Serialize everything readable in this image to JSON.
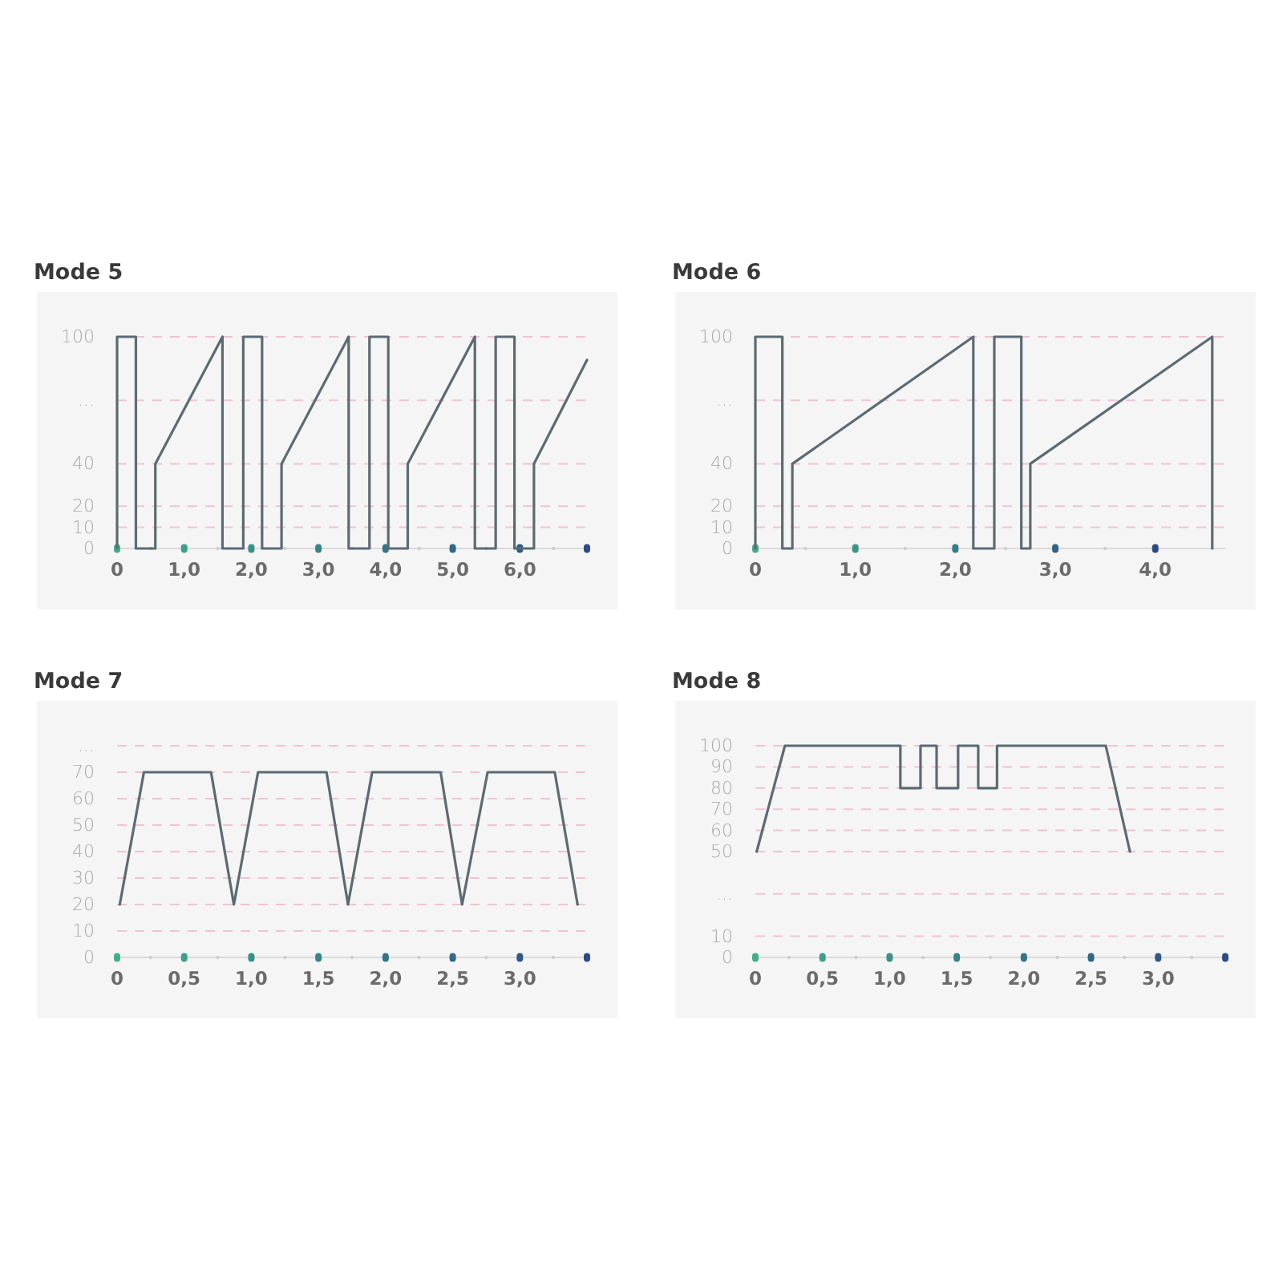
{
  "chart_data": [
    {
      "type": "line",
      "title": "Mode 5",
      "xlim": [
        0,
        7
      ],
      "xticks": [
        {
          "value": 0,
          "label": "0"
        },
        {
          "value": 1,
          "label": "1,0"
        },
        {
          "value": 2,
          "label": "2,0"
        },
        {
          "value": 3,
          "label": "3,0"
        },
        {
          "value": 4,
          "label": "4,0"
        },
        {
          "value": 5,
          "label": "5,0"
        },
        {
          "value": 6,
          "label": "6,0"
        },
        {
          "value": 7,
          "label": null
        }
      ],
      "ylim": [
        0,
        100
      ],
      "yticks": [
        0,
        10,
        20,
        40,
        {
          "value": 70,
          "label": "..."
        },
        100
      ],
      "grid": "y",
      "line_style": "solid",
      "series": [
        {
          "color": "#5b6b73",
          "x": [
            0,
            0,
            0.28,
            0.28,
            0.57,
            0.57,
            1.57,
            1.57,
            1.88,
            1.88,
            2.16,
            2.16,
            2.45,
            2.45,
            3.45,
            3.45,
            3.76,
            3.76,
            4.04,
            4.04,
            4.33,
            4.33,
            5.33,
            5.33,
            5.64,
            5.64,
            5.92,
            5.92,
            6.21,
            6.21,
            7.0
          ],
          "values": [
            0,
            100,
            100,
            0,
            0,
            40,
            100,
            0,
            0,
            100,
            100,
            0,
            0,
            40,
            100,
            0,
            0,
            100,
            100,
            0,
            0,
            40,
            100,
            0,
            0,
            100,
            100,
            0,
            0,
            40,
            89
          ]
        }
      ]
    },
    {
      "type": "line",
      "title": "Mode 6",
      "xlim": [
        0,
        4.7
      ],
      "xticks": [
        {
          "value": 0,
          "label": "0"
        },
        {
          "value": 1,
          "label": "1,0"
        },
        {
          "value": 2,
          "label": "2,0"
        },
        {
          "value": 3,
          "label": "3,0"
        },
        {
          "value": 4,
          "label": "4,0"
        }
      ],
      "ylim": [
        0,
        100
      ],
      "yticks": [
        0,
        10,
        20,
        40,
        {
          "value": 70,
          "label": "..."
        },
        100
      ],
      "grid": "y",
      "line_style": "solid",
      "series": [
        {
          "color": "#5b6b73",
          "x": [
            0,
            0,
            0.27,
            0.27,
            0.37,
            0.37,
            2.18,
            2.18,
            2.39,
            2.39,
            2.66,
            2.66,
            2.75,
            2.75,
            4.57,
            4.57
          ],
          "values": [
            0,
            100,
            100,
            0,
            0,
            40,
            100,
            0,
            0,
            100,
            100,
            0,
            0,
            40,
            100,
            0
          ]
        }
      ]
    },
    {
      "type": "line",
      "title": "Mode 7",
      "xlim": [
        0,
        3.5
      ],
      "xticks": [
        {
          "value": 0,
          "label": "0"
        },
        {
          "value": 0.5,
          "label": "0,5"
        },
        {
          "value": 1,
          "label": "1,0"
        },
        {
          "value": 1.5,
          "label": "1,5"
        },
        {
          "value": 2,
          "label": "2,0"
        },
        {
          "value": 2.5,
          "label": "2,5"
        },
        {
          "value": 3,
          "label": "3,0"
        },
        {
          "value": 3.5,
          "label": null
        }
      ],
      "ylim": [
        0,
        80
      ],
      "yticks": [
        0,
        10,
        20,
        30,
        40,
        50,
        60,
        70,
        {
          "value": 80,
          "label": "..."
        }
      ],
      "grid": "y",
      "line_style": "solid",
      "series": [
        {
          "color": "#5b6b73",
          "x": [
            0.02,
            0.2,
            0.7,
            0.87,
            1.05,
            1.56,
            1.72,
            1.9,
            2.41,
            2.57,
            2.76,
            3.26,
            3.43
          ],
          "values": [
            20,
            70,
            70,
            20,
            70,
            70,
            20,
            70,
            70,
            20,
            70,
            70,
            20
          ]
        }
      ]
    },
    {
      "type": "line",
      "title": "Mode 8",
      "xlim": [
        0,
        3.5
      ],
      "xticks": [
        {
          "value": 0,
          "label": "0"
        },
        {
          "value": 0.5,
          "label": "0,5"
        },
        {
          "value": 1,
          "label": "1,0"
        },
        {
          "value": 1.5,
          "label": "1,5"
        },
        {
          "value": 2,
          "label": "2,0"
        },
        {
          "value": 2.5,
          "label": "2,5"
        },
        {
          "value": 3,
          "label": "3,0"
        },
        {
          "value": 3.5,
          "label": null
        }
      ],
      "ylim": [
        0,
        100
      ],
      "yticks": [
        0,
        10,
        {
          "value": 30,
          "label": "..."
        },
        50,
        60,
        70,
        80,
        90,
        100
      ],
      "grid": "y",
      "line_style": "solid",
      "series": [
        {
          "color": "#5b6b73",
          "x": [
            0.01,
            0.22,
            1.08,
            1.08,
            1.23,
            1.23,
            1.35,
            1.35,
            1.51,
            1.51,
            1.66,
            1.66,
            1.8,
            1.8,
            2.61,
            2.79
          ],
          "values": [
            50,
            100,
            100,
            80,
            80,
            100,
            100,
            80,
            80,
            100,
            100,
            80,
            80,
            100,
            100,
            50
          ]
        }
      ]
    }
  ]
}
